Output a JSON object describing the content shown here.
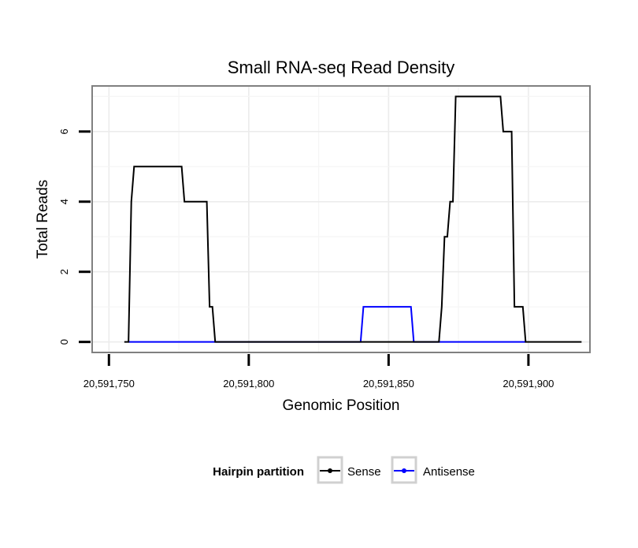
{
  "chart_data": {
    "type": "line",
    "title": "Small RNA-seq Read Density",
    "xlabel": "Genomic Position",
    "ylabel": "Total Reads",
    "xlim": [
      20591744,
      20591922
    ],
    "ylim": [
      -0.3,
      7.3
    ],
    "xticks": [
      20591750,
      20591800,
      20591850,
      20591900
    ],
    "xtick_labels": [
      "20,591,750",
      "20,591,800",
      "20,591,850",
      "20,591,900"
    ],
    "yticks": [
      0,
      2,
      4,
      6
    ],
    "ytick_labels": [
      "0",
      "2",
      "4",
      "6"
    ],
    "grid": true,
    "legend": {
      "title": "Hairpin partition",
      "position": "bottom"
    },
    "series": [
      {
        "name": "Sense",
        "color": "#000000",
        "x": [
          20591755.5,
          20591757,
          20591758,
          20591759,
          20591776,
          20591777,
          20591785,
          20591786,
          20591787,
          20591788,
          20591868,
          20591869,
          20591870,
          20591871,
          20591872,
          20591873,
          20591874,
          20591890,
          20591891,
          20591894,
          20591895,
          20591898,
          20591899,
          20591919
        ],
        "values": [
          0,
          0,
          4,
          5,
          5,
          4,
          4,
          1,
          1,
          0,
          0,
          1,
          3,
          3,
          4,
          4,
          7,
          7,
          6,
          6,
          1,
          1,
          0,
          0
        ]
      },
      {
        "name": "Antisense",
        "color": "#0000ff",
        "x": [
          20591757,
          20591840,
          20591841,
          20591858,
          20591859,
          20591868,
          20591899
        ],
        "values": [
          0,
          0,
          1,
          1,
          0,
          0,
          0
        ]
      }
    ]
  }
}
